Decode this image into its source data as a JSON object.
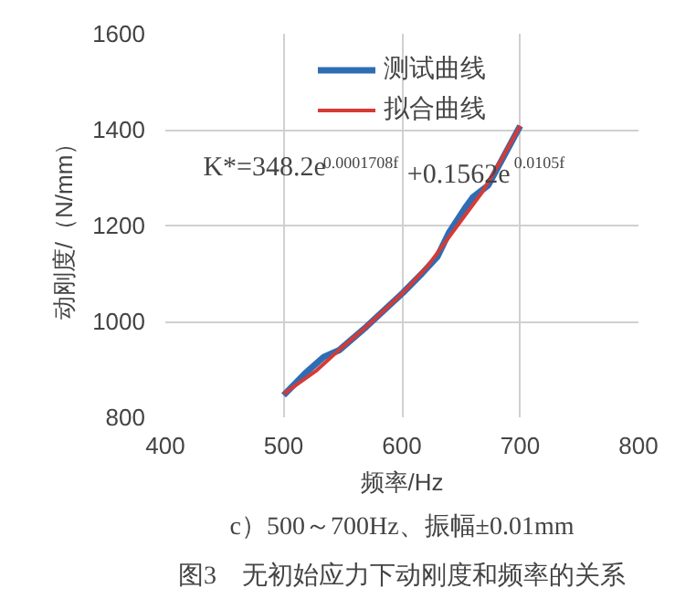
{
  "chart_data": {
    "type": "line",
    "xlabel": "频率/Hz",
    "ylabel": "动刚度/（N/mm）",
    "xlim": [
      400,
      800
    ],
    "xticks": [
      400,
      500,
      600,
      700,
      800
    ],
    "ylim": [
      800,
      1600
    ],
    "yticks": [
      800,
      1000,
      1200,
      1400,
      1600
    ],
    "grid": true,
    "legend": "top",
    "line_style": "solid",
    "marker": "none",
    "series": [
      {
        "name": "测试曲线",
        "color": "#2e6db4",
        "x": [
          500,
          518,
          534,
          547,
          570,
          601,
          617,
          630,
          640,
          653,
          660,
          673,
          700
        ],
        "values": [
          846,
          891,
          926,
          940,
          989,
          1060,
          1100,
          1135,
          1186,
          1235,
          1259,
          1284,
          1408
        ]
      },
      {
        "name": "拟合曲线",
        "color": "#d63a35",
        "x": [
          500,
          528,
          549,
          570,
          601,
          622,
          647,
          668,
          683,
          700
        ],
        "values": [
          849,
          898,
          945,
          989,
          1060,
          1116,
          1200,
          1270,
          1333,
          1408
        ]
      }
    ],
    "annotations": [
      "K*=348.2e$^{0.0001708f}$+0.1562e$^{0.0105f}$",
      "c）500～700Hz、振幅±0.01mm",
      "图3　无初始应力下动刚度和频率的关系"
    ]
  }
}
